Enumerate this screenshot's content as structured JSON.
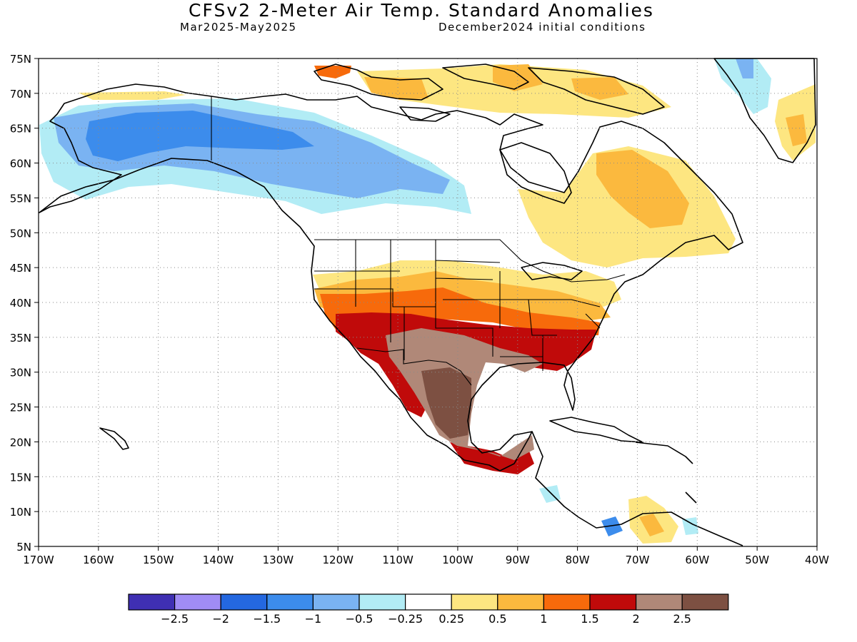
{
  "title": "CFSv2 2-Meter Air Temp. Standard Anomalies",
  "subtitle_left": "Mar2025-May2025",
  "subtitle_right": "December2024 initial conditions",
  "map": {
    "lon_range": [
      -170,
      -40
    ],
    "lat_range": [
      5,
      75
    ],
    "x_ticks": [
      {
        "value": -170,
        "label": "170W"
      },
      {
        "value": -160,
        "label": "160W"
      },
      {
        "value": -150,
        "label": "150W"
      },
      {
        "value": -140,
        "label": "140W"
      },
      {
        "value": -130,
        "label": "130W"
      },
      {
        "value": -120,
        "label": "120W"
      },
      {
        "value": -110,
        "label": "110W"
      },
      {
        "value": -100,
        "label": "100W"
      },
      {
        "value": -90,
        "label": "90W"
      },
      {
        "value": -80,
        "label": "80W"
      },
      {
        "value": -70,
        "label": "70W"
      },
      {
        "value": -60,
        "label": "60W"
      },
      {
        "value": -50,
        "label": "50W"
      },
      {
        "value": -40,
        "label": "40W"
      }
    ],
    "y_ticks": [
      {
        "value": 75,
        "label": "75N"
      },
      {
        "value": 70,
        "label": "70N"
      },
      {
        "value": 65,
        "label": "65N"
      },
      {
        "value": 60,
        "label": "60N"
      },
      {
        "value": 55,
        "label": "55N"
      },
      {
        "value": 50,
        "label": "50N"
      },
      {
        "value": 45,
        "label": "45N"
      },
      {
        "value": 40,
        "label": "40N"
      },
      {
        "value": 35,
        "label": "35N"
      },
      {
        "value": 30,
        "label": "30N"
      },
      {
        "value": 25,
        "label": "25N"
      },
      {
        "value": 20,
        "label": "20N"
      },
      {
        "value": 15,
        "label": "15N"
      },
      {
        "value": 10,
        "label": "10N"
      },
      {
        "value": 5,
        "label": "5N"
      }
    ],
    "grid": "dotted"
  },
  "colorbar": {
    "colors": [
      "#3f2fb3",
      "#a08cf5",
      "#2468e0",
      "#3c8cec",
      "#7ab3f2",
      "#b2ecf5",
      "#ffffff",
      "#fde681",
      "#fbb93e",
      "#f76a0b",
      "#c00a0a",
      "#b08878",
      "#7d5042"
    ],
    "labels": [
      "-2.5",
      "-2",
      "-1.5",
      "-1",
      "-0.5",
      "-0.25",
      "0.25",
      "0.5",
      "1",
      "1.5",
      "2",
      "2.5"
    ]
  }
}
